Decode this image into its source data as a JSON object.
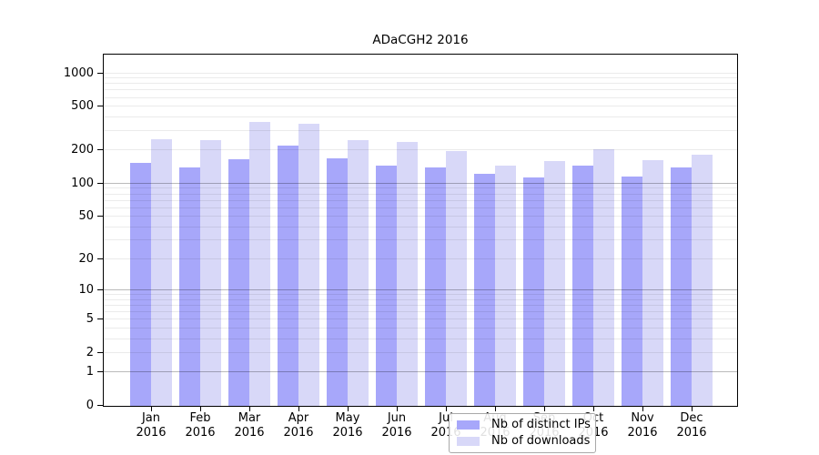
{
  "title": "ADaCGH2 2016",
  "chart_data": {
    "type": "bar",
    "title": "ADaCGH2 2016",
    "xlabel": "",
    "ylabel": "",
    "categories": [
      "Jan 2016",
      "Feb 2016",
      "Mar 2016",
      "Apr 2016",
      "May 2016",
      "Jun 2016",
      "Jul 2016",
      "Aug 2016",
      "Sep 2016",
      "Oct 2016",
      "Nov 2016",
      "Dec 2016"
    ],
    "series": [
      {
        "name": "Nb of distinct IPs",
        "color": "#a7a7fa",
        "values": [
          155,
          141,
          167,
          221,
          171,
          147,
          141,
          123,
          113,
          146,
          117,
          140
        ]
      },
      {
        "name": "Nb of downloads",
        "color": "#d8d8f8",
        "values": [
          254,
          249,
          361,
          352,
          250,
          241,
          199,
          146,
          161,
          205,
          164,
          184
        ]
      }
    ],
    "y_ticks": [
      0,
      1,
      2,
      5,
      10,
      20,
      50,
      100,
      200,
      500,
      1000
    ],
    "y_scale": "log10(value+1)",
    "ylim": [
      0,
      1500
    ],
    "grid": true,
    "grid_major_at": [
      1,
      10,
      100
    ],
    "grid_minor_at": "2-9, 20-90, 200-900, 1000",
    "legend_position": "inside bottom-center",
    "legend_items": [
      "Nb of distinct IPs",
      "Nb of downloads"
    ]
  }
}
